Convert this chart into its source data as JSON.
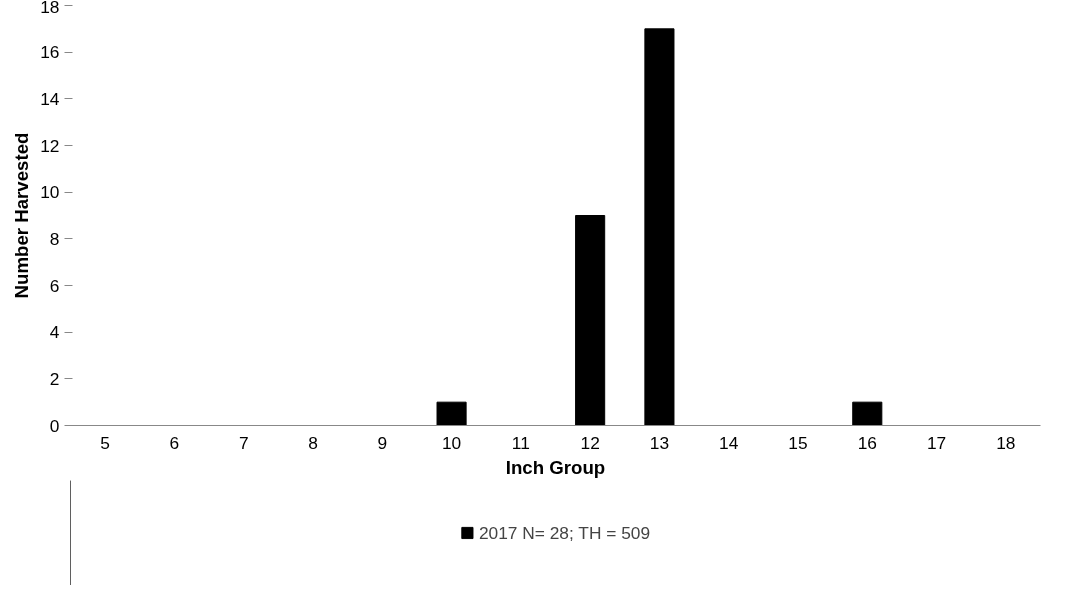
{
  "chart_data": {
    "type": "bar",
    "xlabel": "Inch Group",
    "ylabel": "Number Harvested",
    "categories": [
      "5",
      "6",
      "7",
      "8",
      "9",
      "10",
      "11",
      "12",
      "13",
      "14",
      "15",
      "16",
      "17",
      "18"
    ],
    "series": [
      {
        "name": "2017 N= 28; TH = 509",
        "color": "#000000",
        "values": [
          0,
          0,
          0,
          0,
          0,
          1,
          0,
          9,
          17,
          0,
          0,
          1,
          0,
          0
        ]
      }
    ],
    "ylim": [
      0,
      18
    ],
    "yticks": [
      0,
      2,
      4,
      6,
      8,
      10,
      12,
      14,
      16,
      18
    ],
    "grid": false,
    "legend": "bottom"
  }
}
